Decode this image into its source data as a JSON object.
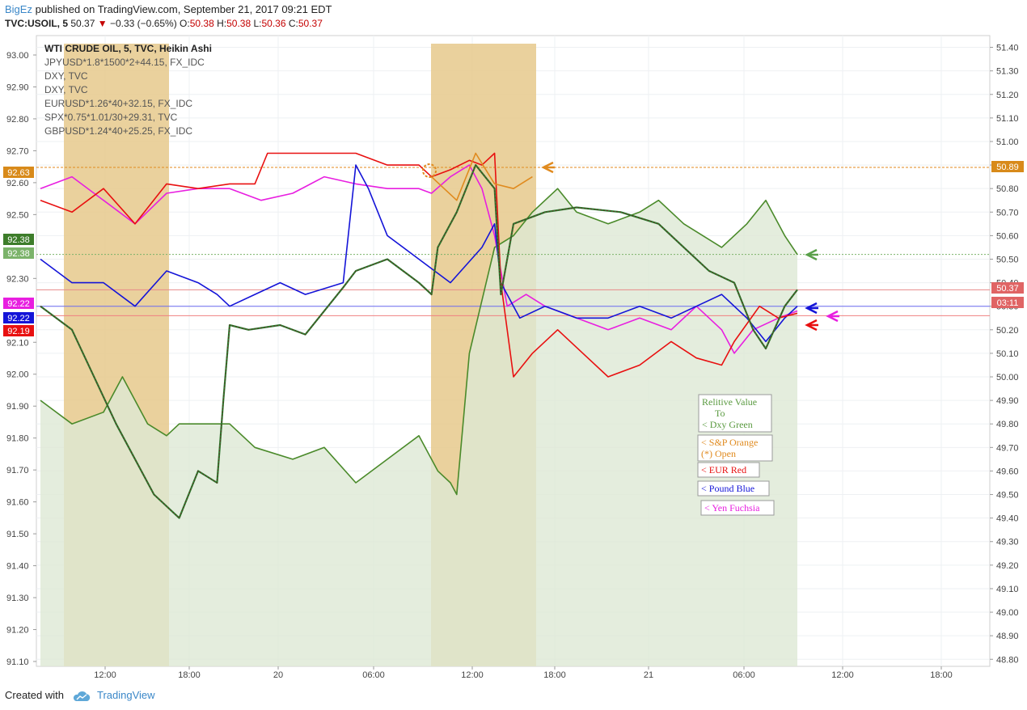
{
  "header": {
    "user": "BigEz",
    "published": "published on TradingView.com, September 21, 2017 09:21 EDT",
    "symbol": "TVC:USOIL, 5",
    "last": "50.37",
    "arrow": "▼",
    "change": "−0.33 (−0.65%)",
    "o_label": "O:",
    "o_val": "50.38",
    "h_label": "H:",
    "h_val": "50.38",
    "l_label": "L:",
    "l_val": "50.36",
    "c_label": "C:",
    "c_val": "50.37"
  },
  "legend": [
    "WTI CRUDE OIL, 5, TVC, Heikin Ashi",
    "JPYUSD*1.8*1500*2+44.15, FX_IDC",
    "DXY, TVC",
    "DXY, TVC",
    "EURUSD*1.26*40+32.15, FX_IDC",
    "SPX*0.75*1.01/30+29.31, TVC",
    "GBPUSD*1.24*40+25.25, FX_IDC"
  ],
  "annotations": {
    "box1_line1": "Relitive Value",
    "box1_line2": "To",
    "box1_line3": "< Dxy Green",
    "box2_line1": "< S&P Orange",
    "box2_line2": "(*) Open",
    "box3": "< EUR Red",
    "box4": "< Pound Blue",
    "box5": "< Yen Fuchsia"
  },
  "footer": {
    "created": "Created with",
    "brand": "TradingView"
  },
  "colors": {
    "oil_up": "#2e7d32",
    "oil_down": "#6d1a1a",
    "dxy": "#4a8a2a",
    "dxy_fill": "#dde9d5",
    "spx": "#e08a1e",
    "session_fill": "#e6c98c",
    "eur": "#e81010",
    "gbp": "#1414d8",
    "jpy": "#e81ee0",
    "muted": "#8a6a6a"
  },
  "chart_data": {
    "type": "line",
    "left_axis": {
      "ticks": [
        "93.00",
        "92.90",
        "92.80",
        "92.70",
        "92.60",
        "92.50",
        "92.30",
        "92.10",
        "92.00",
        "91.90",
        "91.80",
        "91.70",
        "91.60",
        "91.50",
        "91.40",
        "91.30",
        "91.20",
        "91.10"
      ],
      "range": [
        91.1,
        93.0
      ],
      "badges": [
        {
          "text": "92.63",
          "color": "#d88a1a"
        },
        {
          "text": "92.38",
          "color": "#3d7d2a"
        },
        {
          "text": "92.38",
          "color": "#7bb36a"
        },
        {
          "text": "92.22",
          "color": "#e81ee0"
        },
        {
          "text": "92.22",
          "color": "#1414d8"
        },
        {
          "text": "92.19",
          "color": "#e81010"
        }
      ]
    },
    "right_axis": {
      "ticks": [
        "51.40",
        "51.30",
        "51.20",
        "51.10",
        "51.00",
        "50.90",
        "50.80",
        "50.70",
        "50.60",
        "50.50",
        "50.40",
        "50.30",
        "50.20",
        "50.10",
        "50.00",
        "49.90",
        "49.80",
        "49.70",
        "49.60",
        "49.50",
        "49.40",
        "49.30",
        "49.20",
        "49.10",
        "49.00",
        "48.90",
        "48.80"
      ],
      "range": [
        48.77,
        51.45
      ],
      "badges": [
        {
          "text": "50.89",
          "color": "#d88a1a"
        },
        {
          "text": "50.37",
          "color": "#e06464"
        },
        {
          "text": "03:11",
          "color": "#e06464"
        }
      ]
    },
    "x_ticks": [
      "12:00",
      "18:00",
      "20",
      "06:00",
      "12:00",
      "18:00",
      "21",
      "06:00",
      "12:00",
      "18:00"
    ],
    "series": [
      {
        "name": "WTI CRUDE OIL, 5, TVC, Heikin Ashi",
        "points": [
          [
            0,
            50.3
          ],
          [
            5,
            50.2
          ],
          [
            12,
            49.8
          ],
          [
            18,
            49.5
          ],
          [
            22,
            49.4
          ],
          [
            25,
            49.6
          ],
          [
            28,
            49.55
          ],
          [
            29,
            49.9
          ],
          [
            30,
            50.22
          ],
          [
            33,
            50.2
          ],
          [
            38,
            50.22
          ],
          [
            42,
            50.18
          ],
          [
            48,
            50.38
          ],
          [
            50,
            50.45
          ],
          [
            55,
            50.5
          ],
          [
            60,
            50.4
          ],
          [
            62,
            50.35
          ],
          [
            63,
            50.55
          ],
          [
            66,
            50.7
          ],
          [
            69,
            50.9
          ],
          [
            72,
            50.8
          ],
          [
            73,
            50.35
          ],
          [
            75,
            50.65
          ],
          [
            80,
            50.7
          ],
          [
            85,
            50.72
          ],
          [
            92,
            50.7
          ],
          [
            98,
            50.65
          ],
          [
            102,
            50.55
          ],
          [
            106,
            50.45
          ],
          [
            110,
            50.4
          ],
          [
            113,
            50.2
          ],
          [
            115,
            50.12
          ],
          [
            118,
            50.3
          ],
          [
            120,
            50.37
          ]
        ]
      },
      {
        "name": "DXY, TVC",
        "points": [
          [
            0,
            49.9
          ],
          [
            5,
            49.8
          ],
          [
            10,
            49.85
          ],
          [
            13,
            50.0
          ],
          [
            17,
            49.8
          ],
          [
            20,
            49.75
          ],
          [
            22,
            49.8
          ],
          [
            25,
            49.8
          ],
          [
            30,
            49.8
          ],
          [
            34,
            49.7
          ],
          [
            40,
            49.65
          ],
          [
            45,
            49.7
          ],
          [
            50,
            49.55
          ],
          [
            55,
            49.65
          ],
          [
            60,
            49.75
          ],
          [
            63,
            49.6
          ],
          [
            65,
            49.55
          ],
          [
            66,
            49.5
          ],
          [
            68,
            50.1
          ],
          [
            72,
            50.55
          ],
          [
            75,
            50.6
          ],
          [
            78,
            50.7
          ],
          [
            82,
            50.8
          ],
          [
            85,
            50.7
          ],
          [
            90,
            50.65
          ],
          [
            95,
            50.7
          ],
          [
            98,
            50.75
          ],
          [
            102,
            50.65
          ],
          [
            108,
            50.55
          ],
          [
            112,
            50.65
          ],
          [
            115,
            50.75
          ],
          [
            118,
            50.6
          ],
          [
            120,
            50.52
          ]
        ]
      },
      {
        "name": "SPX*0.75*1.01/30+29.31, TVC",
        "points": [
          [
            62,
            50.85
          ],
          [
            64,
            50.8
          ],
          [
            66,
            50.75
          ],
          [
            69,
            50.95
          ],
          [
            72,
            50.82
          ],
          [
            75,
            50.8
          ],
          [
            78,
            50.85
          ]
        ]
      },
      {
        "name": "EURUSD*1.26*40+32.15, FX_IDC",
        "points": [
          [
            0,
            50.75
          ],
          [
            5,
            50.7
          ],
          [
            10,
            50.8
          ],
          [
            15,
            50.65
          ],
          [
            20,
            50.82
          ],
          [
            25,
            50.8
          ],
          [
            30,
            50.82
          ],
          [
            34,
            50.82
          ],
          [
            36,
            50.95
          ],
          [
            40,
            50.95
          ],
          [
            45,
            50.95
          ],
          [
            50,
            50.95
          ],
          [
            55,
            50.9
          ],
          [
            60,
            50.9
          ],
          [
            62,
            50.85
          ],
          [
            65,
            50.88
          ],
          [
            68,
            50.92
          ],
          [
            70,
            50.9
          ],
          [
            72,
            50.95
          ],
          [
            73,
            50.4
          ],
          [
            75,
            50.0
          ],
          [
            78,
            50.1
          ],
          [
            82,
            50.2
          ],
          [
            86,
            50.1
          ],
          [
            90,
            50.0
          ],
          [
            95,
            50.05
          ],
          [
            100,
            50.15
          ],
          [
            104,
            50.08
          ],
          [
            108,
            50.05
          ],
          [
            110,
            50.15
          ],
          [
            114,
            50.3
          ],
          [
            117,
            50.25
          ],
          [
            120,
            50.27
          ]
        ]
      },
      {
        "name": "GBPUSD*1.24*40+25.25, FX_IDC",
        "points": [
          [
            0,
            50.5
          ],
          [
            5,
            50.4
          ],
          [
            10,
            50.4
          ],
          [
            15,
            50.3
          ],
          [
            20,
            50.45
          ],
          [
            25,
            50.4
          ],
          [
            28,
            50.35
          ],
          [
            30,
            50.3
          ],
          [
            34,
            50.35
          ],
          [
            38,
            50.4
          ],
          [
            42,
            50.35
          ],
          [
            48,
            50.4
          ],
          [
            50,
            50.9
          ],
          [
            52,
            50.8
          ],
          [
            55,
            50.6
          ],
          [
            60,
            50.5
          ],
          [
            65,
            50.4
          ],
          [
            70,
            50.55
          ],
          [
            72,
            50.65
          ],
          [
            73,
            50.4
          ],
          [
            76,
            50.25
          ],
          [
            80,
            50.3
          ],
          [
            85,
            50.25
          ],
          [
            90,
            50.25
          ],
          [
            95,
            50.3
          ],
          [
            100,
            50.25
          ],
          [
            104,
            50.3
          ],
          [
            108,
            50.35
          ],
          [
            112,
            50.25
          ],
          [
            115,
            50.15
          ],
          [
            118,
            50.25
          ],
          [
            120,
            50.3
          ]
        ]
      },
      {
        "name": "JPYUSD*1.8*1500*2+44.15, FX_IDC",
        "points": [
          [
            0,
            50.8
          ],
          [
            5,
            50.85
          ],
          [
            10,
            50.75
          ],
          [
            15,
            50.65
          ],
          [
            20,
            50.78
          ],
          [
            25,
            50.8
          ],
          [
            30,
            50.8
          ],
          [
            35,
            50.75
          ],
          [
            40,
            50.78
          ],
          [
            45,
            50.85
          ],
          [
            50,
            50.82
          ],
          [
            55,
            50.8
          ],
          [
            60,
            50.8
          ],
          [
            62,
            50.78
          ],
          [
            65,
            50.85
          ],
          [
            68,
            50.9
          ],
          [
            70,
            50.8
          ],
          [
            72,
            50.6
          ],
          [
            74,
            50.3
          ],
          [
            77,
            50.35
          ],
          [
            80,
            50.3
          ],
          [
            85,
            50.25
          ],
          [
            90,
            50.2
          ],
          [
            95,
            50.25
          ],
          [
            100,
            50.2
          ],
          [
            104,
            50.3
          ],
          [
            108,
            50.2
          ],
          [
            110,
            50.1
          ],
          [
            113,
            50.2
          ],
          [
            117,
            50.25
          ],
          [
            120,
            50.28
          ]
        ]
      }
    ]
  }
}
